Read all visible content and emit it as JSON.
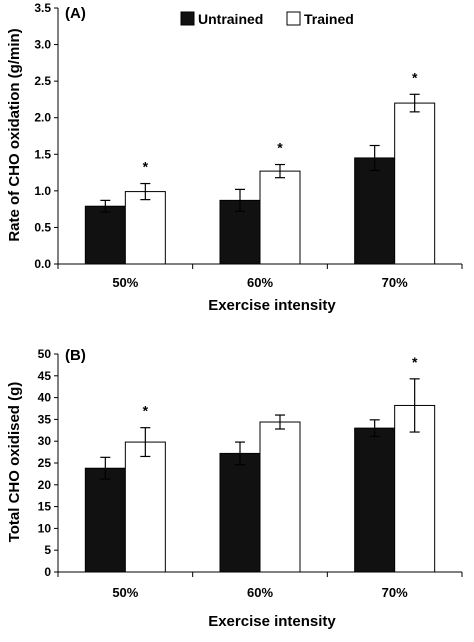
{
  "chart_data": [
    {
      "type": "bar",
      "panel_label": "(A)",
      "xlabel": "Exercise intensity",
      "ylabel": "Rate of CHO oxidation (g/min)",
      "categories": [
        "50%",
        "60%",
        "70%"
      ],
      "ylim": [
        0,
        3.5
      ],
      "yticks": [
        "0.0",
        "0.5",
        "1.0",
        "1.5",
        "2.0",
        "2.5",
        "3.0",
        "3.5"
      ],
      "legend": "top-center",
      "series": [
        {
          "name": "Untrained",
          "color": "#111111",
          "values": [
            0.79,
            0.87,
            1.45
          ],
          "errors": [
            0.08,
            0.15,
            0.17
          ]
        },
        {
          "name": "Trained",
          "color": "#ffffff",
          "values": [
            0.99,
            1.27,
            2.2
          ],
          "errors": [
            0.11,
            0.09,
            0.12
          ]
        }
      ],
      "significance_marks": [
        "*",
        "*",
        "*"
      ]
    },
    {
      "type": "bar",
      "panel_label": "(B)",
      "xlabel": "Exercise intensity",
      "ylabel": "Total CHO oxidised (g)",
      "categories": [
        "50%",
        "60%",
        "70%"
      ],
      "ylim": [
        0,
        50
      ],
      "yticks": [
        "0",
        "5",
        "10",
        "15",
        "20",
        "25",
        "30",
        "35",
        "40",
        "45",
        "50"
      ],
      "series": [
        {
          "name": "Untrained",
          "color": "#111111",
          "values": [
            23.8,
            27.2,
            33.0
          ],
          "errors": [
            2.5,
            2.6,
            1.9
          ]
        },
        {
          "name": "Trained",
          "color": "#ffffff",
          "values": [
            29.8,
            34.4,
            38.2
          ],
          "errors": [
            3.3,
            1.6,
            6.1
          ]
        }
      ],
      "significance_marks": [
        "*",
        "",
        "*"
      ]
    }
  ]
}
